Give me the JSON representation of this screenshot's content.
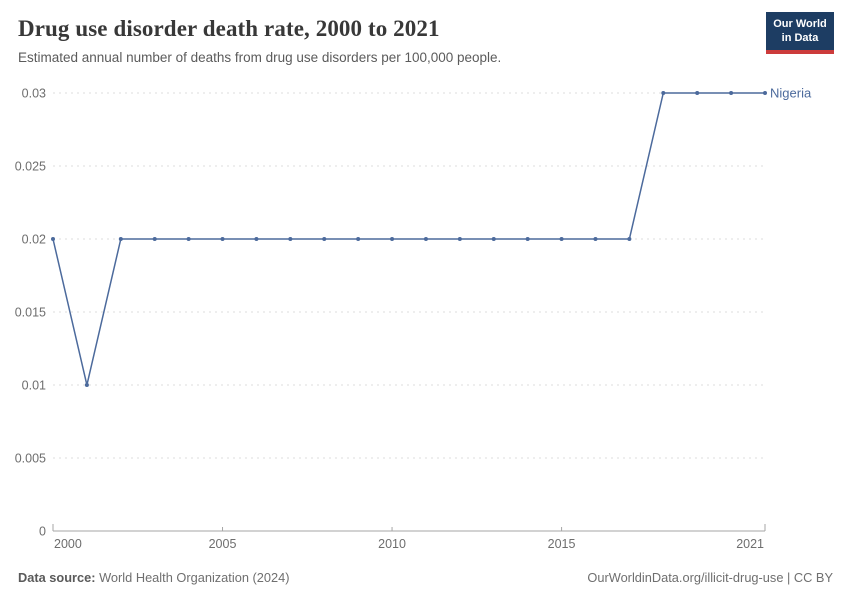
{
  "header": {
    "title": "Drug use disorder death rate, 2000 to 2021",
    "subtitle": "Estimated annual number of deaths from drug use disorders per 100,000 people."
  },
  "logo": {
    "line1": "Our World",
    "line2": "in Data",
    "bg_color": "#1d3d63",
    "bar_color": "#cc3b3b"
  },
  "chart_data": {
    "type": "line",
    "title": "Drug use disorder death rate, 2000 to 2021",
    "xlabel": "",
    "ylabel": "",
    "x": [
      2000,
      2001,
      2002,
      2003,
      2004,
      2005,
      2006,
      2007,
      2008,
      2009,
      2010,
      2011,
      2012,
      2013,
      2014,
      2015,
      2016,
      2017,
      2018,
      2019,
      2020,
      2021
    ],
    "series": [
      {
        "name": "Nigeria",
        "color": "#4C6A9C",
        "values": [
          0.02,
          0.01,
          0.02,
          0.02,
          0.02,
          0.02,
          0.02,
          0.02,
          0.02,
          0.02,
          0.02,
          0.02,
          0.02,
          0.02,
          0.02,
          0.02,
          0.02,
          0.02,
          0.03,
          0.03,
          0.03,
          0.03
        ]
      }
    ],
    "xlim": [
      2000,
      2021
    ],
    "ylim": [
      0,
      0.03
    ],
    "xticks": [
      2000,
      2005,
      2010,
      2015,
      2021
    ],
    "yticks": [
      {
        "v": 0,
        "label": "0"
      },
      {
        "v": 0.005,
        "label": "0.005"
      },
      {
        "v": 0.01,
        "label": "0.01"
      },
      {
        "v": 0.015,
        "label": "0.015"
      },
      {
        "v": 0.02,
        "label": "0.02"
      },
      {
        "v": 0.025,
        "label": "0.025"
      },
      {
        "v": 0.03,
        "label": "0.03"
      }
    ],
    "grid": "horizontal-dashed",
    "legend_position": "end-of-line"
  },
  "footer": {
    "source_label": "Data source:",
    "source_value": " World Health Organization (2024)",
    "link_text": "OurWorldinData.org/illicit-drug-use | CC BY"
  }
}
